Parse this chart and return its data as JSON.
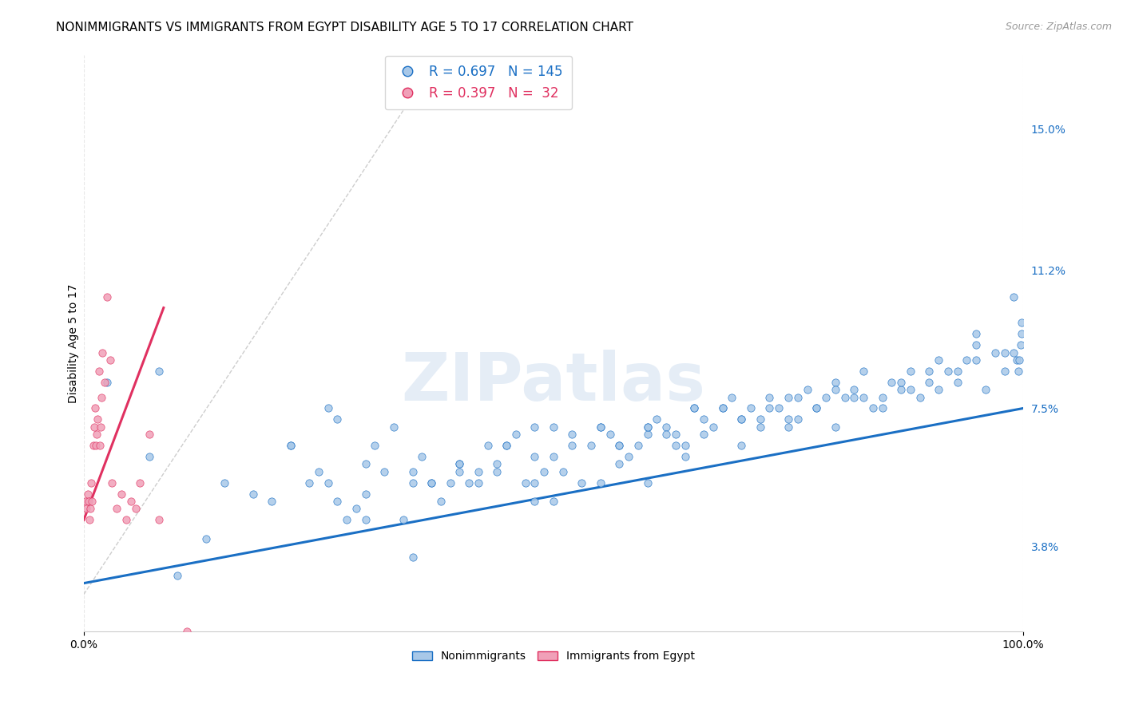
{
  "title": "NONIMMIGRANTS VS IMMIGRANTS FROM EGYPT DISABILITY AGE 5 TO 17 CORRELATION CHART",
  "source_text": "Source: ZipAtlas.com",
  "ylabel": "Disability Age 5 to 17",
  "x_tick_labels": [
    "0.0%",
    "100.0%"
  ],
  "y_tick_labels_right": [
    "3.8%",
    "7.5%",
    "11.2%",
    "15.0%"
  ],
  "y_tick_values_right": [
    3.8,
    7.5,
    11.2,
    15.0
  ],
  "legend_label_blue": "Nonimmigrants",
  "legend_label_pink": "Immigrants from Egypt",
  "legend_R_blue": "R = 0.697",
  "legend_N_blue": "N = 145",
  "legend_R_pink": "R = 0.397",
  "legend_N_pink": "N =  32",
  "blue_color": "#a8c8e8",
  "pink_color": "#f0a0b8",
  "blue_line_color": "#1a6fc4",
  "pink_line_color": "#e03060",
  "watermark_color": "#d0dff0",
  "background_color": "#ffffff",
  "grid_color": "#e8e8e8",
  "scatter_size": 45,
  "blue_scatter_x": [
    2.5,
    7.0,
    10.0,
    13.0,
    15.0,
    18.0,
    20.0,
    22.0,
    24.0,
    25.0,
    26.0,
    27.0,
    28.0,
    29.0,
    30.0,
    31.0,
    32.0,
    33.0,
    34.0,
    35.0,
    36.0,
    37.0,
    38.0,
    39.0,
    40.0,
    41.0,
    42.0,
    43.0,
    44.0,
    45.0,
    46.0,
    47.0,
    48.0,
    49.0,
    50.0,
    51.0,
    52.0,
    53.0,
    54.0,
    55.0,
    56.0,
    57.0,
    58.0,
    59.0,
    60.0,
    61.0,
    62.0,
    63.0,
    64.0,
    65.0,
    66.0,
    67.0,
    68.0,
    69.0,
    70.0,
    71.0,
    72.0,
    73.0,
    74.0,
    75.0,
    76.0,
    77.0,
    78.0,
    79.0,
    80.0,
    81.0,
    82.0,
    83.0,
    84.0,
    85.0,
    86.0,
    87.0,
    88.0,
    89.0,
    90.0,
    91.0,
    92.0,
    93.0,
    94.0,
    95.0,
    96.0,
    97.0,
    98.0,
    99.0,
    99.3,
    99.5,
    99.6,
    99.7,
    99.8,
    99.85,
    40.0,
    27.0,
    30.0,
    35.0,
    45.0,
    55.0,
    60.0,
    65.0,
    70.0,
    75.0,
    80.0,
    85.0,
    90.0,
    95.0,
    22.0,
    26.0,
    35.0,
    48.0,
    52.0,
    60.0,
    68.0,
    75.0,
    83.0,
    91.0,
    37.0,
    44.0,
    57.0,
    62.0,
    73.0,
    87.0,
    50.0,
    55.0,
    48.0,
    63.0,
    72.0,
    82.0,
    30.0,
    42.0,
    57.0,
    66.0,
    78.0,
    93.0,
    48.0,
    64.0,
    76.0,
    88.0,
    95.0,
    98.0,
    99.0,
    8.0,
    40.0,
    50.0,
    60.0,
    70.0,
    80.0
  ],
  "blue_scatter_y": [
    8.2,
    6.2,
    3.0,
    4.0,
    5.5,
    5.2,
    5.0,
    6.5,
    5.5,
    5.8,
    5.5,
    5.0,
    4.5,
    4.8,
    5.2,
    6.5,
    5.8,
    7.0,
    4.5,
    3.5,
    6.2,
    5.5,
    5.0,
    5.5,
    6.0,
    5.5,
    5.8,
    6.5,
    6.0,
    6.5,
    6.8,
    5.5,
    7.0,
    5.8,
    6.2,
    5.8,
    6.5,
    5.5,
    6.5,
    7.0,
    6.8,
    6.5,
    6.2,
    6.5,
    7.0,
    7.2,
    7.0,
    6.8,
    6.5,
    7.5,
    7.2,
    7.0,
    7.5,
    7.8,
    7.2,
    7.5,
    7.2,
    7.8,
    7.5,
    7.0,
    7.8,
    8.0,
    7.5,
    7.8,
    8.2,
    7.8,
    8.0,
    8.5,
    7.5,
    7.8,
    8.2,
    8.0,
    8.5,
    7.8,
    8.2,
    8.8,
    8.5,
    8.2,
    8.8,
    9.5,
    8.0,
    9.0,
    8.5,
    9.0,
    8.8,
    8.5,
    8.8,
    9.2,
    9.5,
    9.8,
    5.8,
    7.2,
    6.0,
    5.5,
    6.5,
    7.0,
    6.8,
    7.5,
    7.2,
    7.8,
    8.0,
    7.5,
    8.5,
    9.2,
    6.5,
    7.5,
    5.8,
    6.2,
    6.8,
    7.0,
    7.5,
    7.2,
    7.8,
    8.0,
    5.5,
    5.8,
    6.5,
    6.8,
    7.5,
    8.2,
    7.0,
    5.5,
    5.0,
    6.5,
    7.0,
    7.8,
    4.5,
    5.5,
    6.0,
    6.8,
    7.5,
    8.5,
    5.5,
    6.2,
    7.2,
    8.0,
    8.8,
    9.0,
    10.5,
    8.5,
    6.0,
    5.0,
    5.5,
    6.5,
    7.0
  ],
  "pink_scatter_x": [
    0.2,
    0.3,
    0.4,
    0.5,
    0.6,
    0.7,
    0.8,
    0.9,
    1.0,
    1.1,
    1.2,
    1.3,
    1.4,
    1.5,
    1.6,
    1.7,
    1.8,
    1.9,
    2.0,
    2.2,
    2.5,
    2.8,
    3.0,
    3.5,
    4.0,
    4.5,
    5.0,
    5.5,
    6.0,
    7.0,
    8.0,
    11.0
  ],
  "pink_scatter_y": [
    5.0,
    4.8,
    5.2,
    5.0,
    4.5,
    4.8,
    5.5,
    5.0,
    6.5,
    7.0,
    7.5,
    6.5,
    6.8,
    7.2,
    8.5,
    6.5,
    7.0,
    7.8,
    9.0,
    8.2,
    10.5,
    8.8,
    5.5,
    4.8,
    5.2,
    4.5,
    5.0,
    4.8,
    5.5,
    6.8,
    4.5,
    1.5
  ],
  "blue_trend_x": [
    0,
    100
  ],
  "blue_trend_y": [
    2.8,
    7.5
  ],
  "pink_trend_x": [
    0.0,
    8.5
  ],
  "pink_trend_y": [
    4.5,
    10.2
  ],
  "ref_line_x": [
    0,
    34
  ],
  "ref_line_y": [
    2.5,
    15.5
  ],
  "xlim": [
    0,
    100
  ],
  "ylim": [
    1.5,
    17.0
  ]
}
